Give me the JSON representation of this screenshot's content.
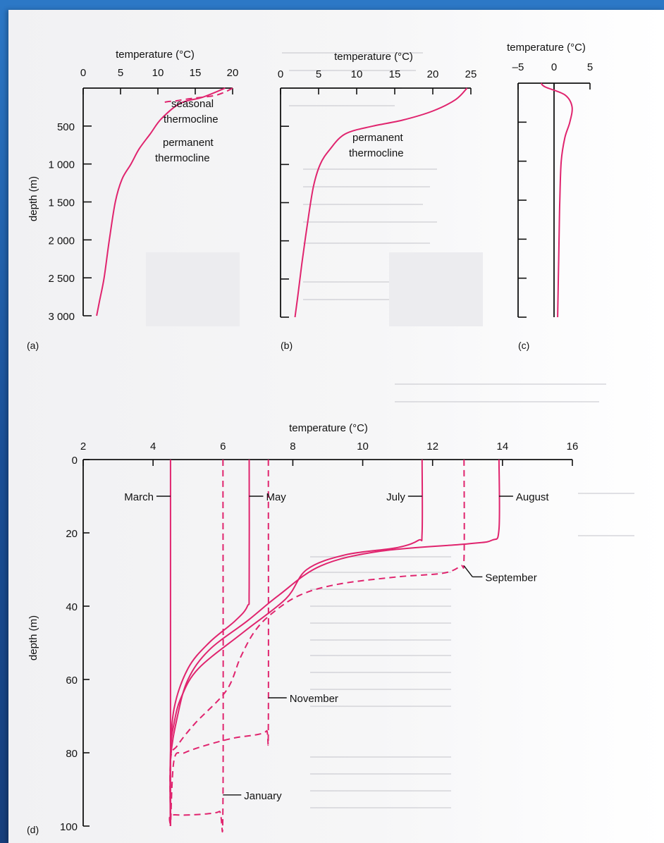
{
  "colors": {
    "curve": "#e0246e",
    "axis": "#111111",
    "background": "#1f5fa8",
    "page": "#f4f4f6"
  },
  "chart_data": [
    {
      "panel": "(a)",
      "type": "line",
      "xlabel": "temperature (°C)",
      "ylabel": "depth (m)",
      "xlim": [
        0,
        20
      ],
      "ylim": [
        0,
        3000
      ],
      "x_ticks": [
        "0",
        "5",
        "10",
        "15",
        "20"
      ],
      "y_ticks": [
        "500",
        "1 000",
        "1 500",
        "2 000",
        "2 500",
        "3 000"
      ],
      "annotations": [
        {
          "line1": "seasonal",
          "line2": "thermocline"
        },
        {
          "line1": "permanent",
          "line2": "thermocline"
        }
      ],
      "series": [
        {
          "style": "solid",
          "x": [
            19,
            16,
            13,
            10.5,
            9,
            7.5,
            6.4,
            5.2,
            4.3,
            3.5,
            2.8,
            2.2,
            1.8
          ],
          "y": [
            0,
            120,
            200,
            400,
            600,
            800,
            1000,
            1200,
            1500,
            2000,
            2500,
            2800,
            3000
          ]
        },
        {
          "style": "dashed",
          "x": [
            20,
            19,
            17.5,
            15,
            13.5,
            12.3,
            11.2,
            10.5
          ],
          "y": [
            0,
            50,
            100,
            130,
            150,
            170,
            180,
            200
          ]
        }
      ]
    },
    {
      "panel": "(b)",
      "type": "line",
      "xlabel": "temperature (°C)",
      "xlim": [
        0,
        25
      ],
      "ylim": [
        0,
        3000
      ],
      "x_ticks": [
        "0",
        "5",
        "10",
        "15",
        "20",
        "25"
      ],
      "annotations": [
        {
          "line1": "permanent",
          "line2": "thermocline"
        }
      ],
      "series": [
        {
          "style": "solid",
          "x": [
            24.5,
            23,
            20,
            16,
            12,
            8.5,
            6.5,
            5.2,
            4.3,
            3.5,
            2.8,
            2.3,
            1.9
          ],
          "y": [
            0,
            150,
            300,
            420,
            500,
            600,
            800,
            1000,
            1300,
            1800,
            2300,
            2700,
            3000
          ]
        }
      ]
    },
    {
      "panel": "(c)",
      "type": "line",
      "xlabel": "temperature (°C)",
      "xlim": [
        -5,
        5
      ],
      "ylim": [
        0,
        3000
      ],
      "x_ticks": [
        "–5",
        "0",
        "5"
      ],
      "series": [
        {
          "style": "solid",
          "x": [
            -1.8,
            -1.2,
            1.5,
            2.5,
            2.2,
            1.5,
            1.0,
            0.8,
            0.7,
            0.6,
            0.5
          ],
          "y": [
            0,
            50,
            150,
            300,
            500,
            700,
            1000,
            1500,
            2000,
            2500,
            3000
          ]
        }
      ]
    },
    {
      "panel": "(d)",
      "type": "line",
      "xlabel": "temperature (°C)",
      "ylabel": "depth (m)",
      "xlim": [
        2,
        16
      ],
      "ylim": [
        0,
        100
      ],
      "x_ticks": [
        "2",
        "4",
        "6",
        "8",
        "10",
        "12",
        "14",
        "16"
      ],
      "y_ticks": [
        "0",
        "20",
        "40",
        "60",
        "80",
        "100"
      ],
      "series": [
        {
          "name": "March",
          "style": "solid",
          "x": [
            4.5,
            4.5
          ],
          "y": [
            0,
            100
          ]
        },
        {
          "name": "May",
          "style": "solid",
          "x": [
            6.75,
            6.75,
            6.7,
            6.35,
            5.6,
            5.0,
            4.6,
            4.5,
            4.5
          ],
          "y": [
            0,
            35,
            40,
            44,
            50,
            57,
            68,
            82,
            100
          ]
        },
        {
          "name": "July",
          "style": "solid",
          "x": [
            11.7,
            11.7,
            11.6,
            11.0,
            9.5,
            8.4,
            7.8,
            6.6,
            5.3,
            4.8,
            4.6,
            4.5,
            4.5
          ],
          "y": [
            0,
            20,
            22,
            24,
            26,
            30,
            38,
            47,
            57,
            65,
            72,
            80,
            100
          ]
        },
        {
          "name": "August",
          "style": "solid",
          "x": [
            13.9,
            13.9,
            13.7,
            13.0,
            10.5,
            8.8,
            7.6,
            6.7,
            5.6,
            5.0,
            4.7,
            4.5,
            4.5
          ],
          "y": [
            0,
            19,
            22,
            23,
            25,
            29,
            37,
            44,
            52,
            60,
            70,
            82,
            100
          ]
        },
        {
          "name": "September",
          "style": "dashed",
          "x": [
            12.9,
            12.9,
            12.8,
            12.3,
            11.0,
            9.3,
            8.2,
            7.4,
            6.9,
            6.5,
            6.1,
            5.2,
            4.7,
            4.5,
            4.5
          ],
          "y": [
            0,
            27,
            29,
            31,
            32,
            34,
            37,
            42,
            47,
            54,
            63,
            72,
            78,
            82,
            100
          ]
        },
        {
          "name": "November",
          "style": "dashed",
          "x": [
            7.3,
            7.3,
            7.25,
            7.0,
            6.3,
            5.5,
            4.9,
            4.6,
            4.5
          ],
          "y": [
            0,
            72,
            74,
            75,
            76,
            78,
            80,
            82,
            100
          ]
        },
        {
          "name": "January",
          "style": "dashed",
          "x": [
            6.0,
            6.0,
            5.9,
            5.5,
            4.9,
            4.5,
            4.5
          ],
          "y": [
            0,
            94,
            96,
            96.7,
            97,
            97.2,
            100
          ]
        }
      ]
    }
  ]
}
